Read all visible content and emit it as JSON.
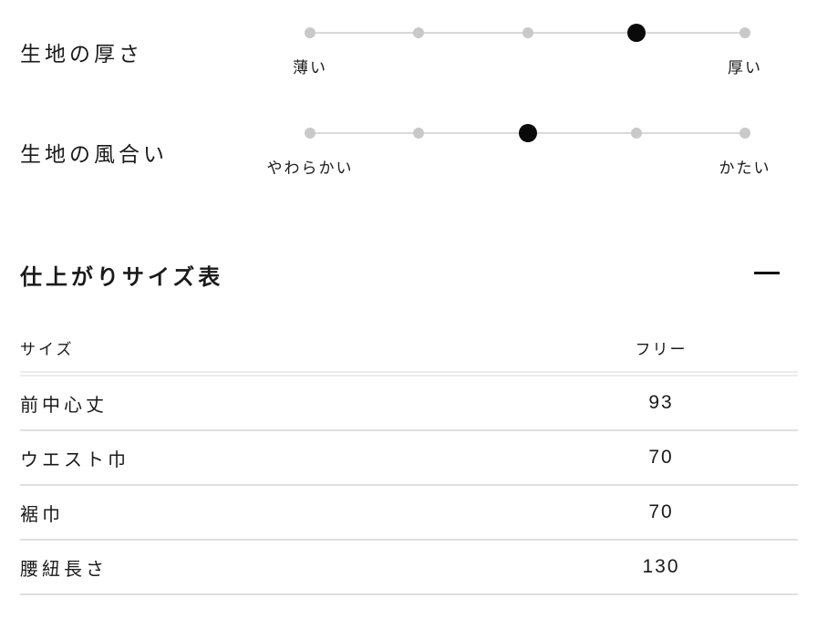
{
  "sliders": [
    {
      "name": "生地の厚さ",
      "left_label": "薄い",
      "right_label": "厚い",
      "levels": 5,
      "active_level": 4
    },
    {
      "name": "生地の風合い",
      "left_label": "やわらかい",
      "right_label": "かたい",
      "levels": 5,
      "active_level": 3
    }
  ],
  "size_section": {
    "title": "仕上がりサイズ表",
    "collapse_icon": "minus-icon",
    "table": {
      "header": {
        "label": "サイズ",
        "value": "フリー"
      },
      "rows": [
        {
          "label": "前中心丈",
          "value": "93"
        },
        {
          "label": "ウエスト巾",
          "value": "70"
        },
        {
          "label": "裾巾",
          "value": "70"
        },
        {
          "label": "腰紐長さ",
          "value": "130"
        }
      ]
    }
  },
  "colors": {
    "text": "#1a1a1a",
    "dot_inactive": "#c9c9c9",
    "dot_active": "#0a0a0a",
    "track_line": "#d9d9d9",
    "header_border": "#ececec",
    "row_border": "#e0e0e0"
  }
}
